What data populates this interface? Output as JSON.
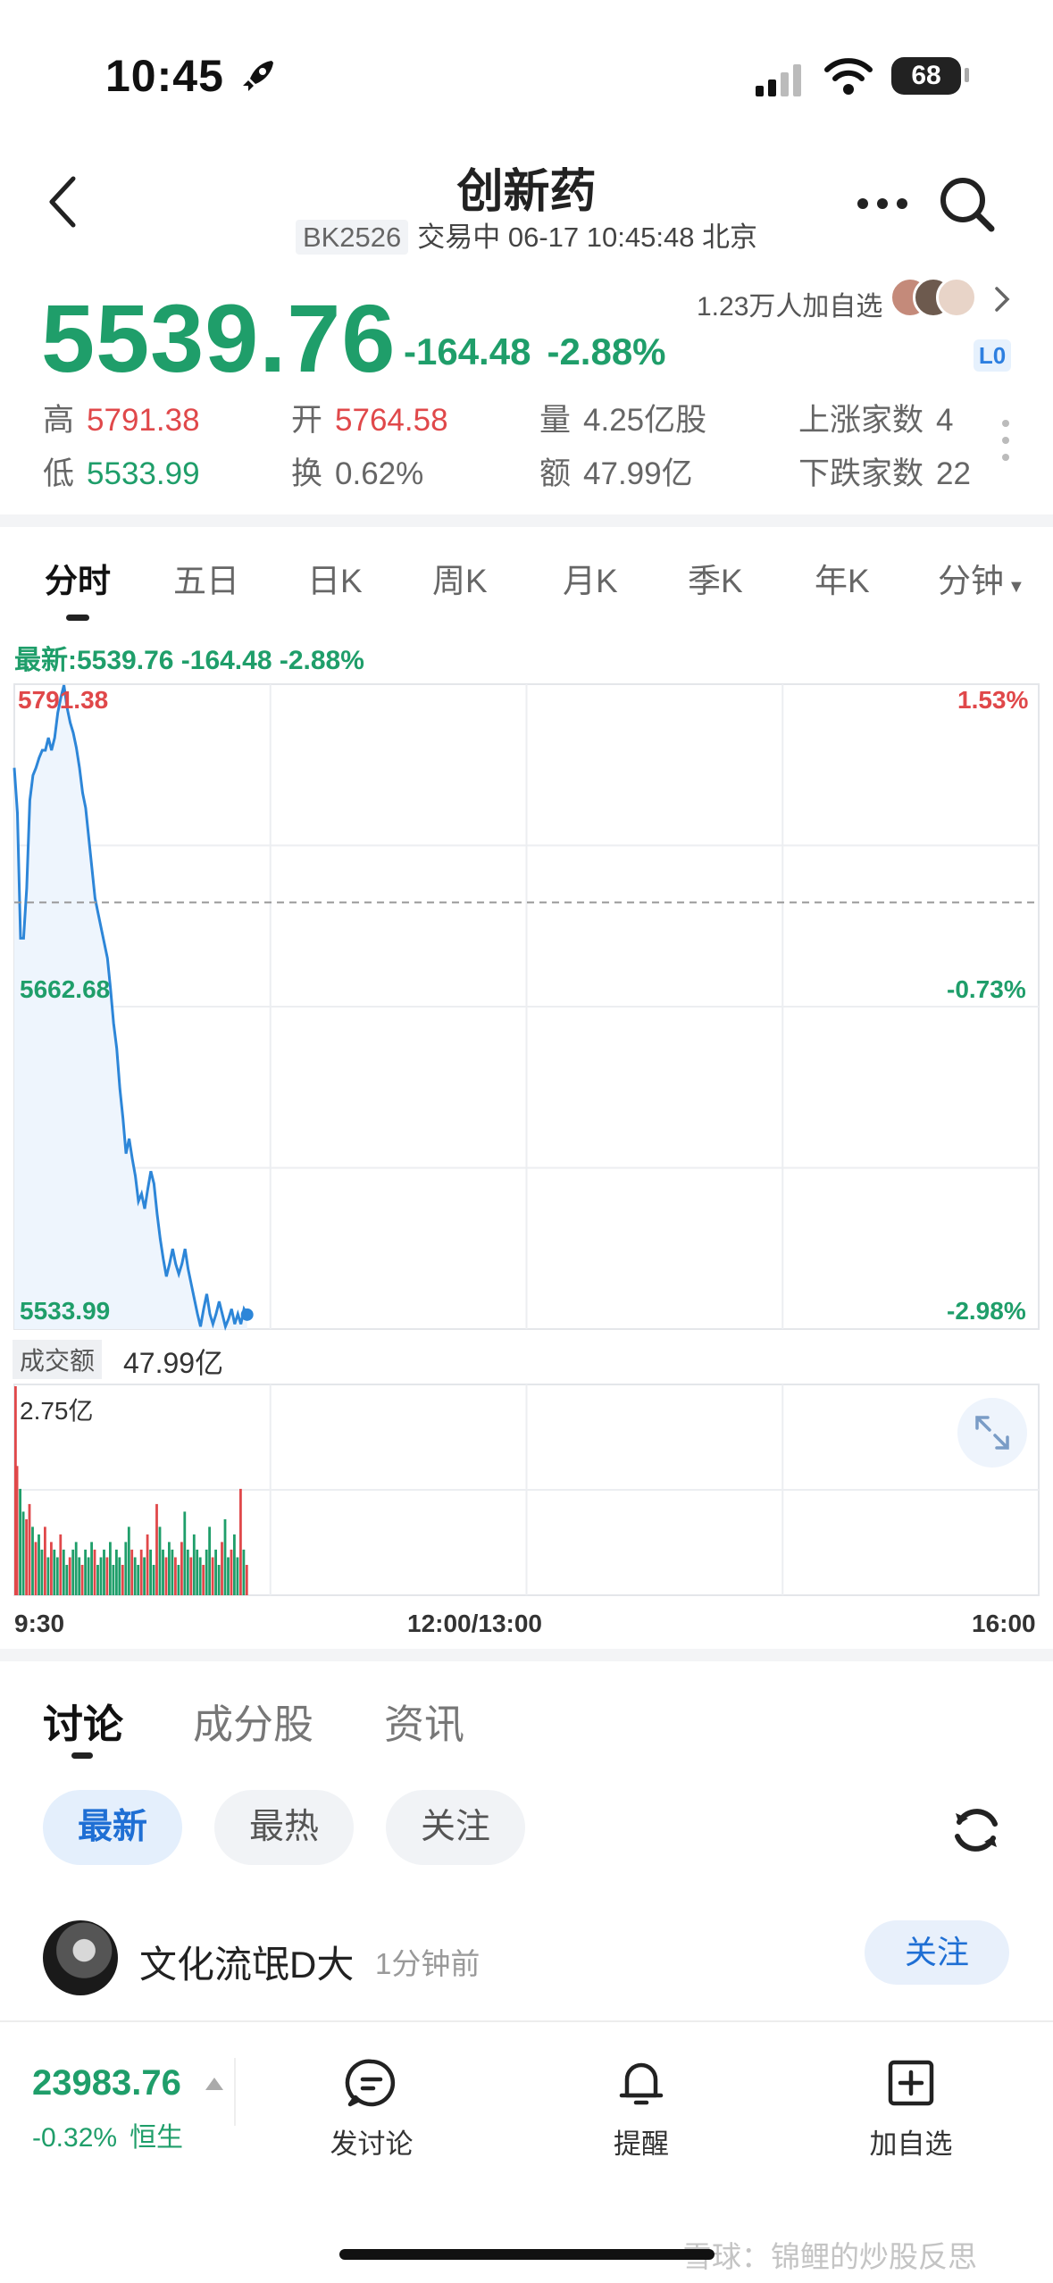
{
  "status_bar": {
    "time": "10:45",
    "battery": "68"
  },
  "header": {
    "title": "创新药",
    "code": "BK2526",
    "trade_status": "交易中 06-17 10:45:48 北京"
  },
  "quote": {
    "price": "5539.76",
    "change": "-164.48",
    "change_pct": "-2.88%",
    "watchers": "1.23万人加自选",
    "level": "L0",
    "stats": {
      "high_label": "高",
      "high": "5791.38",
      "low_label": "低",
      "low": "5533.99",
      "open_label": "开",
      "open": "5764.58",
      "turnover_label": "换",
      "turnover": "0.62%",
      "volume_label": "量",
      "volume": "4.25亿股",
      "amount_label": "额",
      "amount": "47.99亿",
      "up_label": "上涨家数",
      "up_count": "4",
      "down_label": "下跌家数",
      "down_count": "22"
    }
  },
  "chart_tabs": [
    "分时",
    "五日",
    "日K",
    "周K",
    "月K",
    "季K",
    "年K",
    "分钟"
  ],
  "chart": {
    "latest_line": "最新:5539.76  -164.48  -2.88%",
    "y_left": [
      "5791.38",
      "5662.68",
      "5533.99"
    ],
    "y_right": [
      "1.53%",
      "-0.73%",
      "-2.98%"
    ],
    "volume_label": "成交额",
    "volume_value": "47.99亿",
    "volume_max": "2.75亿",
    "time_labels": [
      "9:30",
      "12:00/13:00",
      "16:00"
    ]
  },
  "chart_data": {
    "type": "line",
    "ylim": [
      5533.99,
      5791.38
    ],
    "reference": 5704.24,
    "x_minutes": [
      0,
      1,
      2,
      3,
      4,
      5,
      6,
      7,
      8,
      9,
      10,
      11,
      12,
      13,
      14,
      15,
      16,
      17,
      18,
      19,
      20,
      21,
      22,
      23,
      24,
      25,
      26,
      27,
      28,
      29,
      30,
      31,
      32,
      33,
      34,
      35,
      36,
      37,
      38,
      39,
      40,
      41,
      42,
      43,
      44,
      45,
      46,
      47,
      48,
      49,
      50,
      51,
      52,
      53,
      54,
      55,
      56,
      57,
      58,
      59,
      60,
      61,
      62,
      63,
      64,
      65,
      66,
      67,
      68,
      69,
      70,
      71,
      72,
      73,
      74,
      75
    ],
    "price": [
      5758,
      5740,
      5690,
      5690,
      5710,
      5745,
      5755,
      5758,
      5762,
      5765,
      5765,
      5770,
      5765,
      5770,
      5780,
      5786,
      5791,
      5782,
      5776,
      5772,
      5766,
      5758,
      5748,
      5742,
      5730,
      5718,
      5706,
      5700,
      5694,
      5688,
      5682,
      5670,
      5656,
      5646,
      5630,
      5618,
      5604,
      5610,
      5602,
      5595,
      5585,
      5588,
      5582,
      5590,
      5597,
      5592,
      5580,
      5570,
      5562,
      5555,
      5560,
      5566,
      5560,
      5556,
      5560,
      5566,
      5558,
      5552,
      5546,
      5540,
      5535,
      5542,
      5548,
      5540,
      5536,
      5540,
      5545,
      5540,
      5535,
      5538,
      5542,
      5536,
      5540,
      5536,
      5542,
      5539.76
    ],
    "volume": [
      2.75,
      1.7,
      1.4,
      1.1,
      1.0,
      1.2,
      0.9,
      0.7,
      0.8,
      0.6,
      0.9,
      0.5,
      0.7,
      0.6,
      0.5,
      0.8,
      0.6,
      0.4,
      0.5,
      0.6,
      0.7,
      0.5,
      0.4,
      0.6,
      0.5,
      0.7,
      0.6,
      0.4,
      0.5,
      0.6,
      0.5,
      0.7,
      0.4,
      0.6,
      0.5,
      0.4,
      0.7,
      0.9,
      0.6,
      0.5,
      0.4,
      0.6,
      0.5,
      0.8,
      0.6,
      0.4,
      1.2,
      0.9,
      0.6,
      0.5,
      0.7,
      0.6,
      0.5,
      0.4,
      0.7,
      1.1,
      0.6,
      0.5,
      0.8,
      0.6,
      0.5,
      0.4,
      0.6,
      0.9,
      0.5,
      0.6,
      0.4,
      0.7,
      1.0,
      0.5,
      0.6,
      0.8,
      0.5,
      1.4,
      0.6,
      0.4
    ],
    "volume_dir": [
      "r",
      "r",
      "g",
      "g",
      "r",
      "r",
      "g",
      "r",
      "g",
      "g",
      "r",
      "g",
      "r",
      "g",
      "g",
      "r",
      "g",
      "g",
      "r",
      "g",
      "g",
      "g",
      "r",
      "g",
      "g",
      "g",
      "r",
      "g",
      "g",
      "g",
      "r",
      "g",
      "g",
      "g",
      "g",
      "r",
      "g",
      "g",
      "r",
      "g",
      "g",
      "r",
      "g",
      "r",
      "g",
      "g",
      "r",
      "g",
      "g",
      "r",
      "g",
      "g",
      "r",
      "g",
      "r",
      "g",
      "g",
      "r",
      "g",
      "g",
      "g",
      "r",
      "g",
      "g",
      "r",
      "g",
      "g",
      "r",
      "g",
      "g",
      "r",
      "g",
      "g",
      "r",
      "g",
      "r"
    ]
  },
  "bottom_tabs": [
    "讨论",
    "成分股",
    "资讯"
  ],
  "filters": [
    "最新",
    "最热",
    "关注"
  ],
  "post": {
    "user": "文化流氓D大",
    "time": "1分钟前",
    "follow": "关注"
  },
  "bottom_bar": {
    "index_value": "23983.76",
    "index_change": "-0.32%",
    "index_name": "恒生",
    "discuss": "发讨论",
    "alert": "提醒",
    "add_watch": "加自选"
  },
  "watermark": "雪球：锦鲤的炒股反思",
  "colors": {
    "down": "#1f9e6a",
    "up": "#e0484a",
    "line": "#2d86d8",
    "accent": "#1f6fd4"
  }
}
